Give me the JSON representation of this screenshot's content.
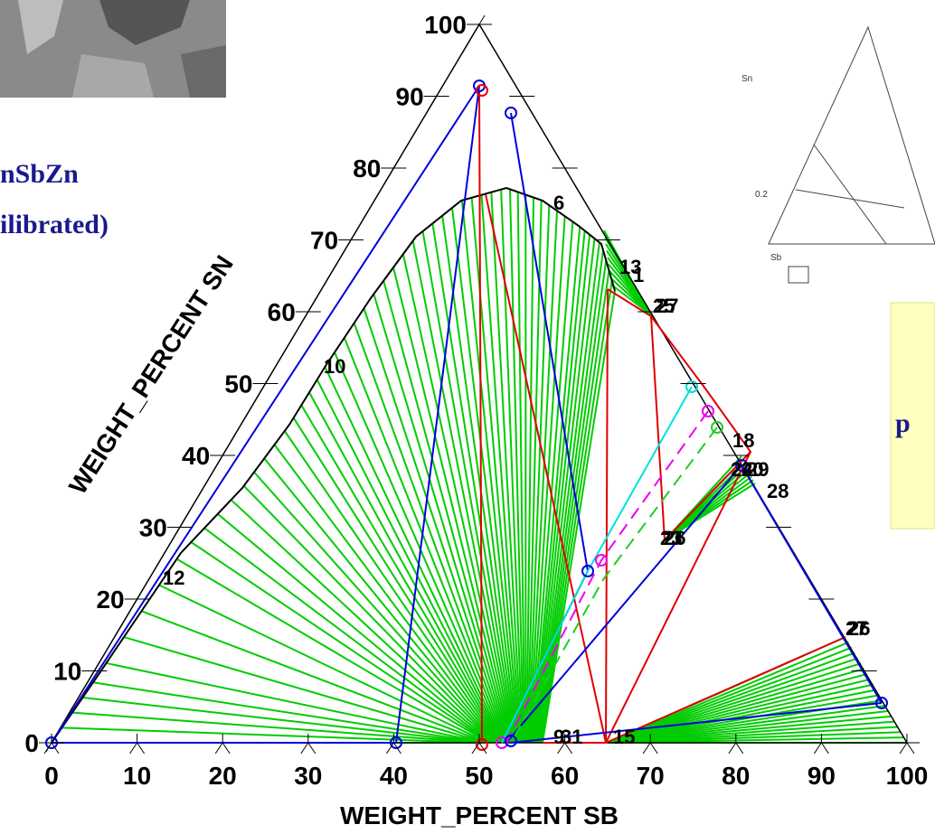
{
  "header": {
    "title": "nSbZn",
    "subtitle": "ilibrated)"
  },
  "axes": {
    "left_title": "WEIGHT_PERCENT SN",
    "bottom_title": "WEIGHT_PERCENT SB",
    "left_ticks": [
      "0",
      "10",
      "20",
      "30",
      "40",
      "50",
      "60",
      "70",
      "80",
      "90",
      "100"
    ],
    "bottom_ticks": [
      "0",
      "10",
      "20",
      "30",
      "40",
      "50",
      "60",
      "70",
      "80",
      "90",
      "100"
    ]
  },
  "point_labels": [
    "6",
    "10",
    "12",
    "13",
    "1",
    "25",
    "27",
    "18",
    "24",
    "20",
    "29",
    "28",
    "23",
    "26",
    "27",
    "26",
    "9",
    "31",
    "15"
  ],
  "callout": {
    "text": "p"
  },
  "inset": {
    "labels": [
      "Sn",
      "0.2",
      "Sb"
    ]
  }
}
